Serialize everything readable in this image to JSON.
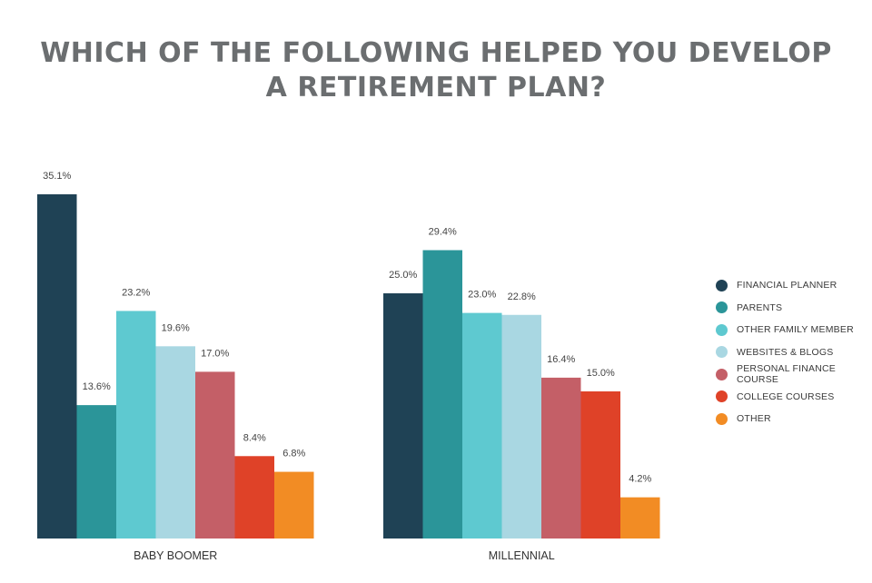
{
  "chart_data": {
    "type": "bar",
    "title": "WHICH OF THE FOLLOWING HELPED YOU DEVELOP A RETIREMENT PLAN?",
    "categories": [
      "BABY BOOMER",
      "MILLENNIAL"
    ],
    "value_format": "{v}%",
    "ylim": [
      0,
      40
    ],
    "grid": false,
    "legend_position": "right",
    "series": [
      {
        "name": "FINANCIAL PLANNER",
        "color": "#1f4255",
        "values": [
          35.1,
          25.0
        ]
      },
      {
        "name": "PARENTS",
        "color": "#2b9599",
        "values": [
          13.6,
          29.4
        ]
      },
      {
        "name": "OTHER FAMILY MEMBER",
        "color": "#5ec9d0",
        "values": [
          23.2,
          23.0
        ]
      },
      {
        "name": "WEBSITES & BLOGS",
        "color": "#a9d7e2",
        "values": [
          19.6,
          22.8
        ]
      },
      {
        "name": "PERSONAL FINANCE COURSE",
        "color": "#c45f67",
        "values": [
          17.0,
          16.4
        ]
      },
      {
        "name": "COLLEGE COURSES",
        "color": "#df4228",
        "values": [
          8.4,
          15.0
        ]
      },
      {
        "name": "OTHER",
        "color": "#f28c24",
        "values": [
          6.8,
          4.2
        ]
      }
    ]
  }
}
